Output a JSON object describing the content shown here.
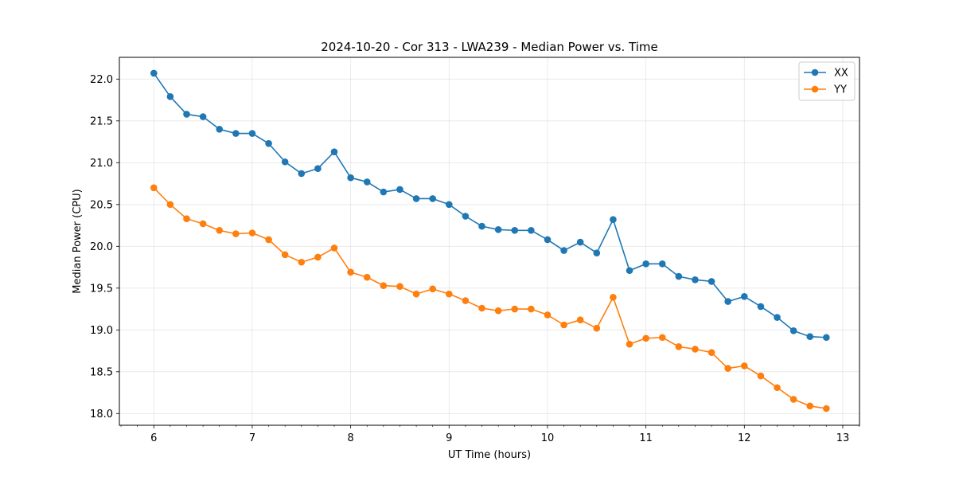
{
  "chart_data": {
    "type": "line",
    "title": "2024-10-20 - Cor 313 - LWA239 - Median Power vs. Time",
    "xlabel": "UT Time (hours)",
    "ylabel": "Median Power (CPU)",
    "xlim": [
      5.65,
      13.17
    ],
    "ylim": [
      17.86,
      22.26
    ],
    "x_ticks": [
      6,
      7,
      8,
      9,
      10,
      11,
      12,
      13
    ],
    "y_ticks": [
      18.0,
      18.5,
      19.0,
      19.5,
      20.0,
      20.5,
      21.0,
      21.5,
      22.0
    ],
    "x_tick_labels": [
      "6",
      "7",
      "8",
      "9",
      "10",
      "11",
      "12",
      "13"
    ],
    "y_tick_labels": [
      "18.0",
      "18.5",
      "19.0",
      "19.5",
      "20.0",
      "20.5",
      "21.0",
      "21.5",
      "22.0"
    ],
    "grid": true,
    "legend_position": "top-right",
    "x": [
      6.0,
      6.1667,
      6.3333,
      6.5,
      6.6667,
      6.8333,
      7.0,
      7.1667,
      7.3333,
      7.5,
      7.6667,
      7.8333,
      8.0,
      8.1667,
      8.3333,
      8.5,
      8.6667,
      8.8333,
      9.0,
      9.1667,
      9.3333,
      9.5,
      9.6667,
      9.8333,
      10.0,
      10.1667,
      10.3333,
      10.5,
      10.6667,
      10.8333,
      11.0,
      11.1667,
      11.3333,
      11.5,
      11.6667,
      11.8333,
      12.0,
      12.1667,
      12.3333,
      12.5,
      12.6667,
      12.8333
    ],
    "series": [
      {
        "name": "XX",
        "color": "#1f77b4",
        "values": [
          22.07,
          21.79,
          21.58,
          21.55,
          21.4,
          21.35,
          21.35,
          21.23,
          21.01,
          20.87,
          20.93,
          21.13,
          20.82,
          20.77,
          20.65,
          20.68,
          20.57,
          20.57,
          20.5,
          20.36,
          20.24,
          20.2,
          20.19,
          20.19,
          20.08,
          19.95,
          20.05,
          19.92,
          20.32,
          19.71,
          19.79,
          19.79,
          19.64,
          19.6,
          19.58,
          19.34,
          19.4,
          19.28,
          19.15,
          18.99,
          18.92,
          18.91
        ]
      },
      {
        "name": "YY",
        "color": "#ff7f0e",
        "values": [
          20.7,
          20.5,
          20.33,
          20.27,
          20.19,
          20.15,
          20.16,
          20.08,
          19.9,
          19.81,
          19.87,
          19.98,
          19.69,
          19.63,
          19.53,
          19.52,
          19.43,
          19.49,
          19.43,
          19.35,
          19.26,
          19.23,
          19.25,
          19.25,
          19.18,
          19.06,
          19.12,
          19.02,
          19.39,
          18.83,
          18.9,
          18.91,
          18.8,
          18.77,
          18.73,
          18.54,
          18.57,
          18.45,
          18.31,
          18.17,
          18.09,
          18.06
        ]
      }
    ]
  }
}
